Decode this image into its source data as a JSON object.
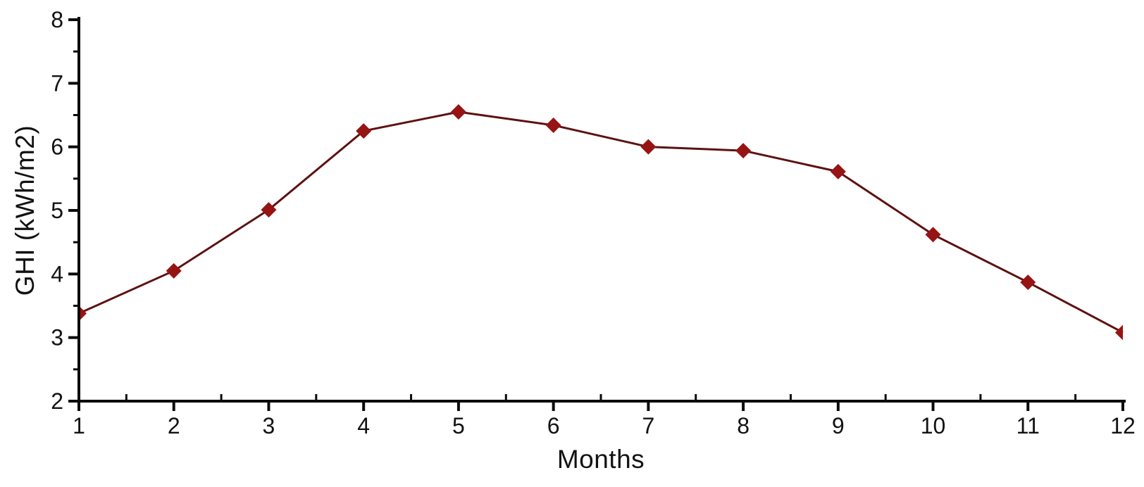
{
  "chart_data": {
    "type": "line",
    "title": "",
    "xlabel": "Months",
    "ylabel": "GHI (kWh/m2)",
    "x": [
      1,
      2,
      3,
      4,
      5,
      6,
      7,
      8,
      9,
      10,
      11,
      12
    ],
    "series": [
      {
        "name": "GHI",
        "values": [
          3.38,
          4.05,
          5.01,
          6.25,
          6.55,
          6.34,
          6.0,
          5.94,
          5.61,
          4.62,
          3.87,
          3.08
        ]
      }
    ],
    "xlim": [
      1,
      12
    ],
    "ylim": [
      2,
      8
    ],
    "x_major_ticks": [
      1,
      2,
      3,
      4,
      5,
      6,
      7,
      8,
      9,
      10,
      11,
      12
    ],
    "x_minor_ticks": [
      1.5,
      2.5,
      3.5,
      4.5,
      5.5,
      6.5,
      7.5,
      8.5,
      9.5,
      10.5,
      11.5
    ],
    "y_major_ticks": [
      2,
      3,
      4,
      5,
      6,
      7,
      8
    ],
    "y_minor_ticks": [
      2.5,
      3.5,
      4.5,
      5.5,
      6.5,
      7.5
    ],
    "grid": false,
    "legend": "none",
    "marker": "diamond",
    "marker_clip": {
      "first": "right-half",
      "last": "left-half"
    },
    "colors": {
      "line": "#5e1111",
      "marker": "#971414",
      "axis": "#0a0a0a",
      "text": "#121212",
      "background": "#ffffff"
    }
  }
}
